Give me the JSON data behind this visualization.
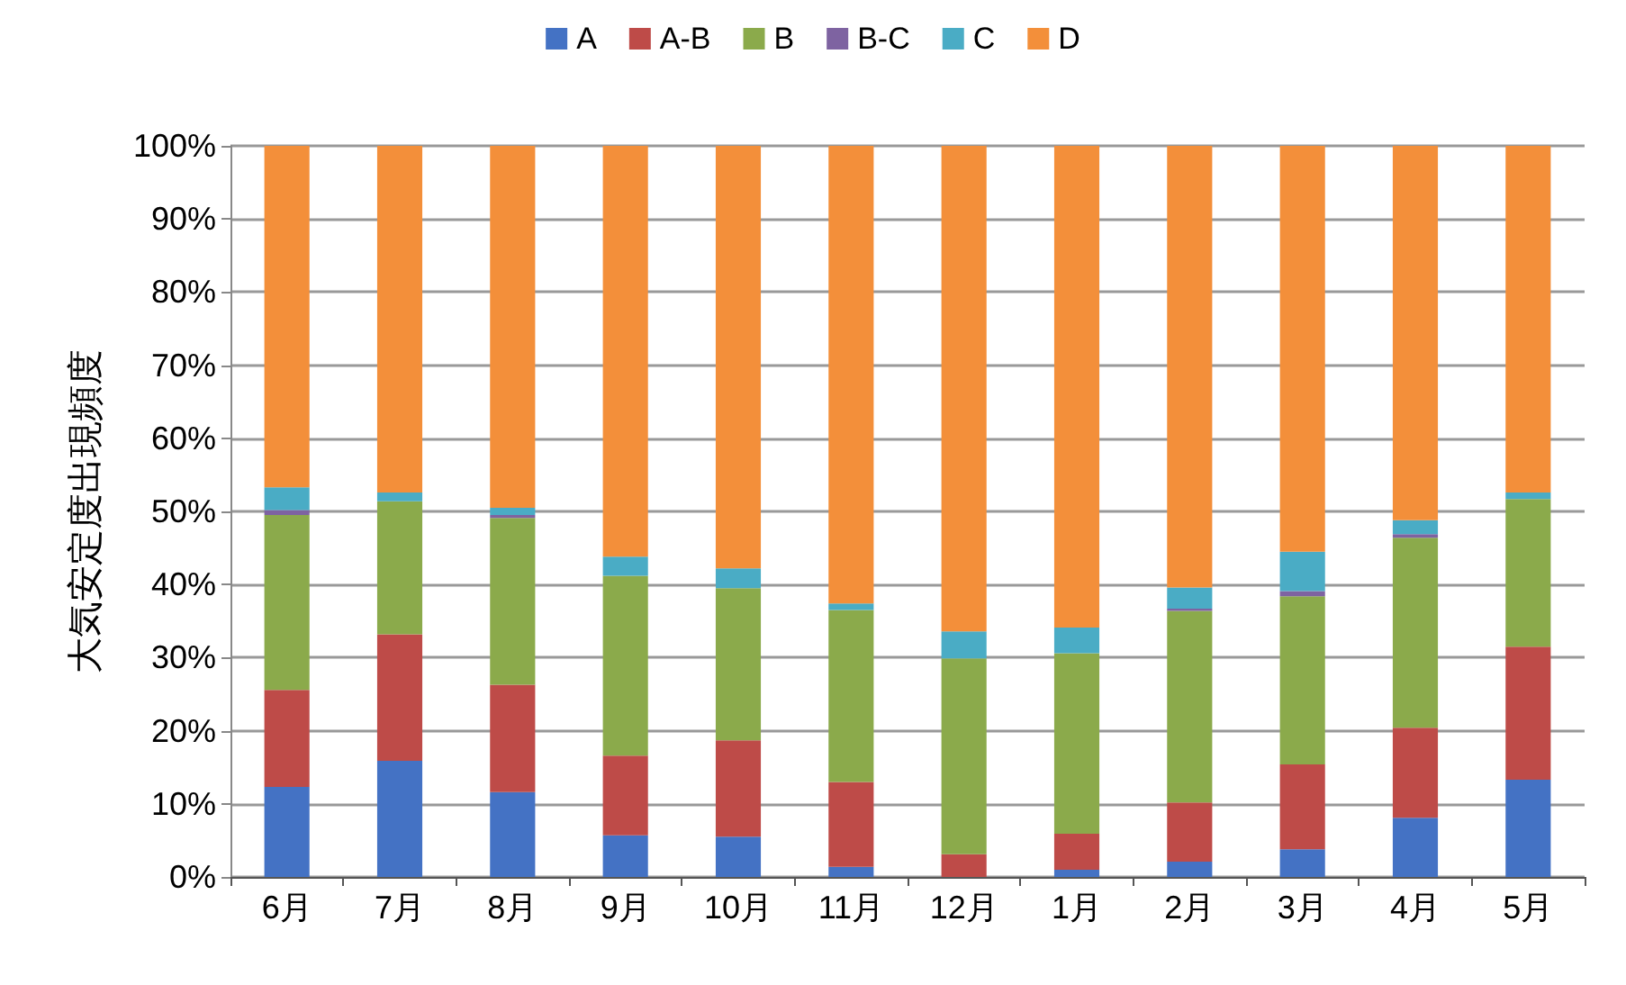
{
  "chart_data": {
    "type": "bar",
    "stacked": true,
    "ylabel": "大気安定度出現頻度",
    "categories": [
      "6月",
      "7月",
      "8月",
      "9月",
      "10月",
      "11月",
      "12月",
      "1月",
      "2月",
      "3月",
      "4月",
      "5月"
    ],
    "series": [
      {
        "name": "A",
        "color": "#4472c4",
        "values": [
          12.3,
          15.9,
          11.6,
          5.7,
          5.5,
          1.4,
          0,
          1.0,
          2.1,
          3.8,
          8.1,
          13.3
        ]
      },
      {
        "name": "A-B",
        "color": "#be4b48",
        "values": [
          13.3,
          17.3,
          14.7,
          10.9,
          13.2,
          11.6,
          3.1,
          4.9,
          8.1,
          11.6,
          12.3,
          18.2
        ]
      },
      {
        "name": "B",
        "color": "#8baa4b",
        "values": [
          23.9,
          18.2,
          22.8,
          24.6,
          20.8,
          23.5,
          26.8,
          24.7,
          26.2,
          23.0,
          26.0,
          20.2
        ]
      },
      {
        "name": "B-C",
        "color": "#7e63a1",
        "values": [
          0.7,
          0,
          0.4,
          0,
          0,
          0,
          0,
          0,
          0.3,
          0.7,
          0.5,
          0
        ]
      },
      {
        "name": "C",
        "color": "#4aacc5",
        "values": [
          3.1,
          1.2,
          1.0,
          2.6,
          2.7,
          0.9,
          3.7,
          3.5,
          2.9,
          5.4,
          1.9,
          0.9
        ]
      },
      {
        "name": "D",
        "color": "#f38f3a",
        "values": [
          46.7,
          47.4,
          49.5,
          56.2,
          57.8,
          62.6,
          66.4,
          65.9,
          60.4,
          55.5,
          51.2,
          47.4
        ]
      }
    ],
    "ylim": [
      0,
      100
    ],
    "yticks": [
      {
        "value": 0,
        "label": "0%"
      },
      {
        "value": 10,
        "label": "10%"
      },
      {
        "value": 20,
        "label": "20%"
      },
      {
        "value": 30,
        "label": "30%"
      },
      {
        "value": 40,
        "label": "40%"
      },
      {
        "value": 50,
        "label": "50%"
      },
      {
        "value": 60,
        "label": "60%"
      },
      {
        "value": 70,
        "label": "70%"
      },
      {
        "value": 80,
        "label": "80%"
      },
      {
        "value": 90,
        "label": "90%"
      },
      {
        "value": 100,
        "label": "100%"
      }
    ],
    "grid": "y",
    "legend": "top"
  }
}
